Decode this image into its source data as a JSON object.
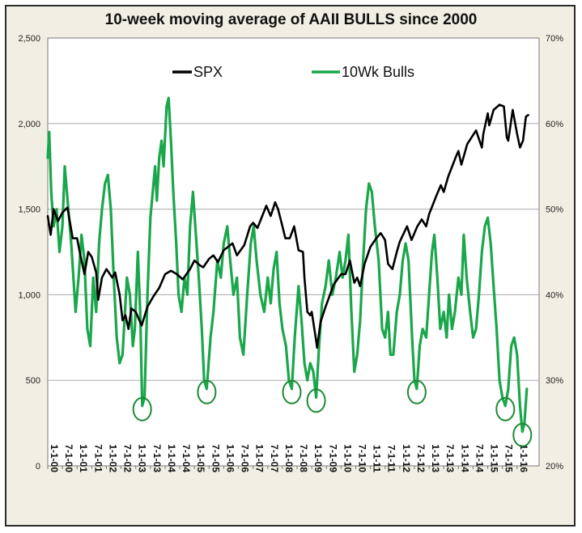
{
  "chart_data": {
    "type": "line",
    "title": "10-week moving average of AAII BULLS since 2000",
    "y_left": {
      "min": 0,
      "max": 2500,
      "ticks": [
        0,
        500,
        1000,
        1500,
        2000,
        2500
      ],
      "tick_labels": [
        "0",
        "500",
        "1,000",
        "1,500",
        "2,000",
        "2,500"
      ]
    },
    "y_right": {
      "min": 20,
      "max": 70,
      "ticks": [
        20,
        30,
        40,
        50,
        60,
        70
      ],
      "tick_labels": [
        "20%",
        "30%",
        "40%",
        "50%",
        "60%",
        "70%"
      ]
    },
    "x_range": [
      2000.0,
      2016.75
    ],
    "x_tick_labels": [
      "1-1-00",
      "7-1-00",
      "1-1-01",
      "7-1-01",
      "1-1-02",
      "7-1-02",
      "1-1-03",
      "7-1-03",
      "1-1-04",
      "7-1-04",
      "1-1-05",
      "7-1-05",
      "1-1-06",
      "7-1-06",
      "1-1-07",
      "7-1-07",
      "1-1-08",
      "7-1-08",
      "1-1-09",
      "7-1-09",
      "1-1-10",
      "7-1-10",
      "1-1-11",
      "7-1-11",
      "1-1-12",
      "7-1-12",
      "1-1-13",
      "7-1-13",
      "1-1-14",
      "7-1-14",
      "1-1-15",
      "7-1-15",
      "1-1-16"
    ],
    "legend": "top",
    "grid": true,
    "series": [
      {
        "name": "SPX",
        "axis": "left",
        "color": "#000000",
        "points": [
          [
            2000.0,
            1460
          ],
          [
            2000.1,
            1350
          ],
          [
            2000.2,
            1500
          ],
          [
            2000.35,
            1430
          ],
          [
            2000.5,
            1480
          ],
          [
            2000.67,
            1510
          ],
          [
            2000.85,
            1330
          ],
          [
            2001.0,
            1330
          ],
          [
            2001.1,
            1240
          ],
          [
            2001.2,
            1160
          ],
          [
            2001.25,
            1120
          ],
          [
            2001.38,
            1250
          ],
          [
            2001.5,
            1220
          ],
          [
            2001.65,
            1130
          ],
          [
            2001.72,
            970
          ],
          [
            2001.85,
            1100
          ],
          [
            2002.0,
            1150
          ],
          [
            2002.2,
            1100
          ],
          [
            2002.3,
            1130
          ],
          [
            2002.45,
            1000
          ],
          [
            2002.55,
            850
          ],
          [
            2002.65,
            880
          ],
          [
            2002.75,
            800
          ],
          [
            2002.85,
            920
          ],
          [
            2003.0,
            900
          ],
          [
            2003.15,
            840
          ],
          [
            2003.2,
            820
          ],
          [
            2003.4,
            930
          ],
          [
            2003.6,
            990
          ],
          [
            2003.8,
            1040
          ],
          [
            2004.0,
            1120
          ],
          [
            2004.2,
            1140
          ],
          [
            2004.4,
            1120
          ],
          [
            2004.6,
            1090
          ],
          [
            2004.85,
            1150
          ],
          [
            2005.0,
            1200
          ],
          [
            2005.2,
            1170
          ],
          [
            2005.3,
            1160
          ],
          [
            2005.5,
            1210
          ],
          [
            2005.65,
            1230
          ],
          [
            2005.8,
            1190
          ],
          [
            2006.0,
            1260
          ],
          [
            2006.3,
            1300
          ],
          [
            2006.45,
            1230
          ],
          [
            2006.7,
            1290
          ],
          [
            2006.9,
            1400
          ],
          [
            2007.0,
            1420
          ],
          [
            2007.15,
            1390
          ],
          [
            2007.45,
            1520
          ],
          [
            2007.6,
            1460
          ],
          [
            2007.75,
            1540
          ],
          [
            2007.85,
            1500
          ],
          [
            2008.0,
            1400
          ],
          [
            2008.1,
            1330
          ],
          [
            2008.25,
            1330
          ],
          [
            2008.4,
            1400
          ],
          [
            2008.55,
            1260
          ],
          [
            2008.7,
            1250
          ],
          [
            2008.75,
            1100
          ],
          [
            2008.85,
            900
          ],
          [
            2008.95,
            880
          ],
          [
            2009.0,
            900
          ],
          [
            2009.15,
            730
          ],
          [
            2009.18,
            690
          ],
          [
            2009.3,
            840
          ],
          [
            2009.45,
            920
          ],
          [
            2009.6,
            990
          ],
          [
            2009.75,
            1060
          ],
          [
            2010.0,
            1120
          ],
          [
            2010.15,
            1120
          ],
          [
            2010.3,
            1200
          ],
          [
            2010.45,
            1070
          ],
          [
            2010.55,
            1100
          ],
          [
            2010.65,
            1050
          ],
          [
            2010.8,
            1180
          ],
          [
            2011.0,
            1280
          ],
          [
            2011.2,
            1330
          ],
          [
            2011.35,
            1360
          ],
          [
            2011.5,
            1320
          ],
          [
            2011.6,
            1180
          ],
          [
            2011.75,
            1150
          ],
          [
            2011.9,
            1250
          ],
          [
            2012.0,
            1310
          ],
          [
            2012.25,
            1400
          ],
          [
            2012.4,
            1320
          ],
          [
            2012.6,
            1400
          ],
          [
            2012.75,
            1440
          ],
          [
            2012.9,
            1400
          ],
          [
            2013.0,
            1470
          ],
          [
            2013.25,
            1580
          ],
          [
            2013.4,
            1640
          ],
          [
            2013.5,
            1600
          ],
          [
            2013.65,
            1690
          ],
          [
            2013.9,
            1800
          ],
          [
            2014.0,
            1840
          ],
          [
            2014.1,
            1760
          ],
          [
            2014.3,
            1880
          ],
          [
            2014.6,
            1960
          ],
          [
            2014.8,
            1860
          ],
          [
            2014.85,
            1940
          ],
          [
            2015.0,
            2060
          ],
          [
            2015.05,
            1990
          ],
          [
            2015.2,
            2080
          ],
          [
            2015.4,
            2110
          ],
          [
            2015.55,
            2100
          ],
          [
            2015.65,
            1920
          ],
          [
            2015.7,
            1900
          ],
          [
            2015.85,
            2080
          ],
          [
            2016.0,
            1940
          ],
          [
            2016.1,
            1860
          ],
          [
            2016.2,
            1900
          ],
          [
            2016.3,
            2040
          ],
          [
            2016.38,
            2050
          ]
        ]
      },
      {
        "name": "10Wk Bulls",
        "axis": "right",
        "color": "#1aa64a",
        "points": [
          [
            2000.0,
            56
          ],
          [
            2000.05,
            59
          ],
          [
            2000.12,
            52
          ],
          [
            2000.2,
            48
          ],
          [
            2000.3,
            50
          ],
          [
            2000.4,
            45
          ],
          [
            2000.5,
            48
          ],
          [
            2000.58,
            55
          ],
          [
            2000.7,
            50
          ],
          [
            2000.8,
            46
          ],
          [
            2000.95,
            38
          ],
          [
            2001.05,
            42
          ],
          [
            2001.15,
            47
          ],
          [
            2001.25,
            44
          ],
          [
            2001.35,
            36
          ],
          [
            2001.45,
            34
          ],
          [
            2001.55,
            42
          ],
          [
            2001.65,
            38
          ],
          [
            2001.75,
            46
          ],
          [
            2001.85,
            50
          ],
          [
            2001.95,
            53
          ],
          [
            2002.05,
            54
          ],
          [
            2002.15,
            50
          ],
          [
            2002.25,
            42
          ],
          [
            2002.35,
            35
          ],
          [
            2002.45,
            32
          ],
          [
            2002.55,
            33
          ],
          [
            2002.7,
            42
          ],
          [
            2002.8,
            40
          ],
          [
            2002.9,
            34
          ],
          [
            2002.97,
            36
          ],
          [
            2003.07,
            45
          ],
          [
            2003.15,
            38
          ],
          [
            2003.22,
            27
          ],
          [
            2003.3,
            28
          ],
          [
            2003.4,
            40
          ],
          [
            2003.5,
            49
          ],
          [
            2003.58,
            52
          ],
          [
            2003.66,
            55
          ],
          [
            2003.72,
            51
          ],
          [
            2003.8,
            56
          ],
          [
            2003.88,
            58
          ],
          [
            2003.95,
            55
          ],
          [
            2004.05,
            62
          ],
          [
            2004.12,
            63
          ],
          [
            2004.2,
            58
          ],
          [
            2004.28,
            52
          ],
          [
            2004.38,
            46
          ],
          [
            2004.46,
            40
          ],
          [
            2004.56,
            38
          ],
          [
            2004.66,
            42
          ],
          [
            2004.76,
            40
          ],
          [
            2004.85,
            48
          ],
          [
            2004.95,
            52
          ],
          [
            2005.05,
            47
          ],
          [
            2005.15,
            42
          ],
          [
            2005.25,
            36
          ],
          [
            2005.33,
            30
          ],
          [
            2005.42,
            29
          ],
          [
            2005.55,
            35
          ],
          [
            2005.65,
            38
          ],
          [
            2005.78,
            44
          ],
          [
            2005.9,
            42
          ],
          [
            2006.0,
            46
          ],
          [
            2006.12,
            48
          ],
          [
            2006.22,
            44
          ],
          [
            2006.33,
            40
          ],
          [
            2006.45,
            42
          ],
          [
            2006.55,
            35
          ],
          [
            2006.67,
            33
          ],
          [
            2006.8,
            40
          ],
          [
            2006.92,
            46
          ],
          [
            2007.02,
            48
          ],
          [
            2007.12,
            44
          ],
          [
            2007.25,
            40
          ],
          [
            2007.38,
            38
          ],
          [
            2007.5,
            42
          ],
          [
            2007.6,
            39
          ],
          [
            2007.7,
            43
          ],
          [
            2007.8,
            45
          ],
          [
            2007.9,
            39
          ],
          [
            2008.0,
            36
          ],
          [
            2008.12,
            34
          ],
          [
            2008.22,
            30
          ],
          [
            2008.32,
            29
          ],
          [
            2008.42,
            35
          ],
          [
            2008.55,
            41
          ],
          [
            2008.65,
            37
          ],
          [
            2008.75,
            32
          ],
          [
            2008.85,
            30
          ],
          [
            2008.95,
            32
          ],
          [
            2009.05,
            31
          ],
          [
            2009.15,
            28
          ],
          [
            2009.25,
            34
          ],
          [
            2009.35,
            39
          ],
          [
            2009.47,
            41
          ],
          [
            2009.58,
            44
          ],
          [
            2009.7,
            40
          ],
          [
            2009.82,
            42
          ],
          [
            2009.95,
            45
          ],
          [
            2010.05,
            42
          ],
          [
            2010.15,
            44
          ],
          [
            2010.25,
            47
          ],
          [
            2010.35,
            38
          ],
          [
            2010.45,
            31
          ],
          [
            2010.55,
            33
          ],
          [
            2010.65,
            37
          ],
          [
            2010.75,
            44
          ],
          [
            2010.85,
            50
          ],
          [
            2010.95,
            53
          ],
          [
            2011.05,
            52
          ],
          [
            2011.15,
            48
          ],
          [
            2011.28,
            44
          ],
          [
            2011.4,
            36
          ],
          [
            2011.5,
            35
          ],
          [
            2011.6,
            38
          ],
          [
            2011.68,
            33
          ],
          [
            2011.78,
            33
          ],
          [
            2011.9,
            38
          ],
          [
            2012.0,
            40
          ],
          [
            2012.1,
            44
          ],
          [
            2012.2,
            46
          ],
          [
            2012.3,
            44
          ],
          [
            2012.42,
            35
          ],
          [
            2012.5,
            30
          ],
          [
            2012.58,
            29
          ],
          [
            2012.68,
            34
          ],
          [
            2012.78,
            36
          ],
          [
            2012.9,
            35
          ],
          [
            2013.0,
            40
          ],
          [
            2013.1,
            45
          ],
          [
            2013.18,
            47
          ],
          [
            2013.28,
            42
          ],
          [
            2013.38,
            36
          ],
          [
            2013.5,
            38
          ],
          [
            2013.6,
            35
          ],
          [
            2013.68,
            40
          ],
          [
            2013.78,
            36
          ],
          [
            2013.88,
            38
          ],
          [
            2014.0,
            42
          ],
          [
            2014.1,
            40
          ],
          [
            2014.18,
            47
          ],
          [
            2014.28,
            42
          ],
          [
            2014.4,
            38
          ],
          [
            2014.5,
            35
          ],
          [
            2014.6,
            36
          ],
          [
            2014.7,
            40
          ],
          [
            2014.8,
            45
          ],
          [
            2014.9,
            48
          ],
          [
            2015.0,
            49
          ],
          [
            2015.1,
            46
          ],
          [
            2015.2,
            41
          ],
          [
            2015.3,
            36
          ],
          [
            2015.4,
            30
          ],
          [
            2015.5,
            28
          ],
          [
            2015.6,
            27
          ],
          [
            2015.7,
            29
          ],
          [
            2015.8,
            34
          ],
          [
            2015.9,
            35
          ],
          [
            2016.0,
            33
          ],
          [
            2016.1,
            27
          ],
          [
            2016.18,
            24
          ],
          [
            2016.25,
            25
          ],
          [
            2016.33,
            29
          ]
        ]
      }
    ]
  }
}
